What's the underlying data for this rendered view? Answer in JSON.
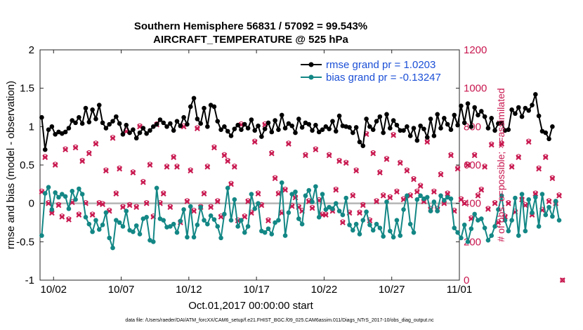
{
  "chart_data": {
    "type": "line",
    "title": "Southern Hemisphere 56831 / 57092 = 99.543%",
    "subtitle": "AIRCRAFT_TEMPERATURE @ 525 hPa",
    "xlabel": "Oct.01,2017 00:00:00 start",
    "ylabel": "rmse and bias (model - observation)",
    "ylabel_right": "# of obs: o=possible; ×=assimilated",
    "xlim": [
      0.5,
      31.5
    ],
    "ylim": [
      -1,
      2
    ],
    "ylim_right": [
      0,
      1200
    ],
    "x_ticks": [
      {
        "value": 1.5,
        "label": "10/02"
      },
      {
        "value": 6.5,
        "label": "10/07"
      },
      {
        "value": 11.5,
        "label": "10/12"
      },
      {
        "value": 16.5,
        "label": "10/17"
      },
      {
        "value": 21.5,
        "label": "10/22"
      },
      {
        "value": 26.5,
        "label": "10/27"
      },
      {
        "value": 31.5,
        "label": "11/01"
      }
    ],
    "y_ticks": [
      -1,
      -0.5,
      0,
      0.5,
      1,
      1.5,
      2
    ],
    "y_tick_labels": [
      "-1",
      "-0.5",
      "0",
      "0.5",
      "1",
      "1.5",
      "2"
    ],
    "y_ticks_right": [
      0,
      200,
      400,
      600,
      800,
      1000,
      1200
    ],
    "y_tick_labels_right": [
      "0",
      "200",
      "400",
      "600",
      "800",
      "1000",
      "1200"
    ],
    "x_start": 0.625,
    "x_step": 0.25,
    "series": [
      {
        "name": "rmse grand pr = 1.0203",
        "color": "#000000",
        "values": [
          1.12,
          0.7,
          0.96,
          1.0,
          0.9,
          0.93,
          0.91,
          0.93,
          0.98,
          1.08,
          1.05,
          1.12,
          1.04,
          1.24,
          1.06,
          1.22,
          1.1,
          1.28,
          1.05,
          0.98,
          1.03,
          1.07,
          1.13,
          1.04,
          0.9,
          1.02,
          0.92,
          0.96,
          0.85,
          0.92,
          0.98,
          0.91,
          0.95,
          1.0,
          1.03,
          1.09,
          1.05,
          1.0,
          1.04,
          0.95,
          1.07,
          1.01,
          1.12,
          1.03,
          1.26,
          1.37,
          1.1,
          1.04,
          1.24,
          1.0,
          1.28,
          1.26,
          1.07,
          0.96,
          1.0,
          0.94,
          0.88,
          0.97,
          1.02,
          0.96,
          1.03,
          0.98,
          1.09,
          0.95,
          1.01,
          0.87,
          0.97,
          1.05,
          0.93,
          1.08,
          0.96,
          1.15,
          0.98,
          1.04,
          1.01,
          0.92,
          1.1,
          0.99,
          1.05,
          1.03,
          0.95,
          1.02,
          0.93,
          0.96,
          1.0,
          0.97,
          1.07,
          0.94,
          1.14,
          1.01,
          1.0,
          0.99,
          0.92,
          0.99,
          0.8,
          0.75,
          1.1,
          1.0,
          0.96,
          1.07,
          1.13,
          0.92,
          1.16,
          0.98,
          1.08,
          1.02,
          0.95,
          0.95,
          1.0,
          0.88,
          0.98,
          0.82,
          1.01,
          0.97,
          0.86,
          1.1,
          0.88,
          1.16,
          0.98,
          1.11,
          1.03,
          0.96,
          1.15,
          1.02,
          1.27,
          1.05,
          1.3,
          1.0,
          1.25,
          1.15,
          1.2,
          1.13,
          0.98,
          1.11,
          0.95,
          1.04,
          1.05,
          0.95,
          0.96,
          1.22,
          1.17,
          1.25,
          1.13,
          1.24,
          1.21,
          1.28,
          1.42,
          1.14,
          0.94,
          0.92,
          0.84,
          1.0
        ]
      },
      {
        "name": "bias grand pr = -0.13247",
        "color": "#138785",
        "values": [
          -0.42,
          0.13,
          0.21,
          -0.08,
          0.14,
          0.08,
          0.12,
          0.09,
          -0.07,
          0.16,
          0.05,
          0.19,
          0.12,
          -0.18,
          -0.27,
          -0.37,
          -0.22,
          -0.34,
          -0.28,
          -0.12,
          -0.45,
          -0.58,
          -0.22,
          -0.25,
          -0.3,
          -0.1,
          -0.35,
          -0.37,
          -0.29,
          -0.4,
          -0.2,
          -0.18,
          -0.48,
          -0.5,
          0.2,
          -0.2,
          -0.22,
          -0.31,
          -0.3,
          -0.27,
          -0.38,
          -0.23,
          -0.08,
          -0.44,
          -0.04,
          -0.44,
          -0.28,
          -0.05,
          -0.22,
          -0.27,
          -0.16,
          -0.21,
          -0.3,
          -0.45,
          -0.14,
          0.2,
          -0.22,
          0.05,
          -0.3,
          -0.22,
          -0.38,
          -0.3,
          0.12,
          -0.07,
          0.0,
          -0.36,
          -0.38,
          -0.33,
          -0.4,
          -0.25,
          -0.22,
          0.27,
          -0.42,
          -0.12,
          0.12,
          0.15,
          -0.2,
          -0.27,
          0.1,
          0.17,
          0.02,
          0.22,
          -0.18,
          0.12,
          -0.08,
          -0.05,
          -0.07,
          0.0,
          -0.1,
          -0.15,
          0.07,
          -0.28,
          -0.35,
          -0.27,
          -0.4,
          -0.22,
          -0.11,
          -0.28,
          -0.35,
          -0.27,
          -0.32,
          -0.43,
          0.02,
          -0.36,
          -0.44,
          -0.22,
          -0.42,
          -0.08,
          0.1,
          -0.27,
          -0.38,
          0.05,
          0.1,
          0.06,
          0.08,
          -0.1,
          0.02,
          -0.1,
          0.1,
          0.04,
          0.08,
          0.06,
          -0.32,
          -0.38,
          -0.45,
          -0.28,
          -0.5,
          -0.33,
          -0.14,
          -0.22,
          -0.2,
          -0.32,
          -0.48,
          -0.42,
          -0.3,
          -0.08,
          0.1,
          -0.22,
          -0.36,
          -0.22,
          0.07,
          -0.42,
          0.12,
          -0.36,
          0.05,
          -0.12,
          0.08,
          -0.3,
          0.12,
          -0.15,
          -0.05,
          -0.17,
          0.03,
          -0.22
        ]
      },
      {
        "name": "observations assimilated",
        "color": "#c8174f",
        "marker": "x",
        "values": [
          460,
          640,
          400,
          350,
          600,
          390,
          330,
          680,
          315,
          405,
          690,
          340,
          620,
          400,
          660,
          340,
          710,
          400,
          395,
          570,
          360,
          740,
          450,
          580,
          380,
          775,
          390,
          560,
          380,
          800,
          510,
          400,
          600,
          330,
          810,
          400,
          450,
          590,
          380,
          640,
          590,
          300,
          800,
          410,
          570,
          360,
          790,
          380,
          450,
          590,
          380,
          690,
          410,
          330,
          650,
          620,
          500,
          590,
          310,
          810,
          330,
          410,
          350,
          720,
          450,
          390,
          810,
          310,
          660,
          530,
          450,
          350,
          470,
          710,
          385,
          430,
          380,
          360,
          650,
          410,
          375,
          680,
          415,
          340,
          340,
          650,
          360,
          470,
          620,
          300,
          610,
          350,
          440,
          570,
          350,
          390,
          760,
          310,
          660,
          410,
          560,
          440,
          630,
          430,
          755,
          460,
          610,
          420,
          570,
          440,
          525,
          460,
          490,
          410,
          720,
          370,
          460,
          370,
          550,
          400,
          450,
          650,
          360,
          580,
          420,
          400,
          600,
          320,
          650,
          440,
          470,
          590,
          370,
          705,
          400,
          300,
          710,
          330,
          400,
          590,
          355,
          640,
          420,
          390,
          720,
          340,
          450,
          580,
          365,
          640,
          410,
          530,
          400,
          440,
          0
        ]
      },
      {
        "name": "observations possible",
        "color": "#c8174f",
        "marker": "o",
        "values": [
          465,
          645,
          405,
          355,
          605,
          395,
          335,
          685,
          320,
          410,
          695,
          345,
          625,
          405,
          665,
          345,
          715,
          405,
          400,
          575,
          365,
          745,
          455,
          585,
          385,
          780,
          395,
          565,
          385,
          805,
          515,
          405,
          605,
          335,
          815,
          405,
          455,
          595,
          385,
          645,
          595,
          305,
          805,
          415,
          575,
          365,
          795,
          385,
          455,
          595,
          385,
          695,
          415,
          335,
          655,
          625,
          505,
          595,
          315,
          815,
          335,
          415,
          355,
          725,
          455,
          395,
          815,
          315,
          665,
          535,
          455,
          355,
          475,
          715,
          390,
          435,
          385,
          365,
          655,
          415,
          380,
          685,
          420,
          345,
          345,
          655,
          365,
          475,
          625,
          305,
          615,
          355,
          445,
          575,
          355,
          395,
          765,
          315,
          665,
          415,
          565,
          445,
          635,
          435,
          760,
          465,
          615,
          425,
          575,
          445,
          530,
          465,
          495,
          415,
          725,
          375,
          465,
          375,
          555,
          405,
          455,
          655,
          365,
          585,
          425,
          405,
          605,
          325,
          655,
          445,
          475,
          595,
          375,
          710,
          405,
          305,
          715,
          335,
          405,
          595,
          360,
          645,
          425,
          395,
          725,
          345,
          455,
          585,
          370,
          645,
          415,
          535,
          405,
          445,
          0
        ]
      }
    ],
    "legend_position": "top-right",
    "grid": false,
    "footer": "data file: /Users/raeder/DAI/ATM_forcXX/CAM6_setup/f.e21.FHIST_BGC.f09_025.CAM6assim.011/Diags_NTrS_2017-10/obs_diag_output.nc"
  }
}
